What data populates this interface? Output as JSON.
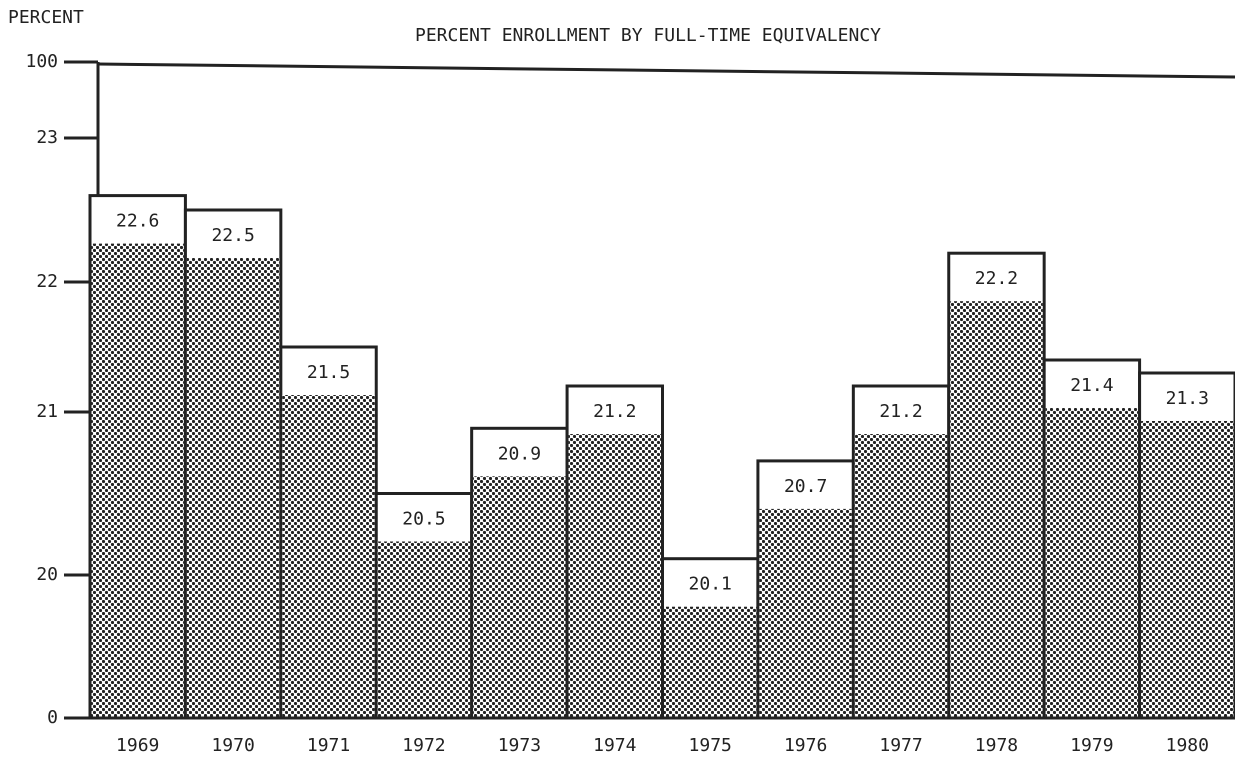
{
  "chart_data": {
    "type": "bar",
    "title": "PERCENT ENROLLMENT BY FULL-TIME EQUIVALENCY",
    "y_label": "PERCENT",
    "categories": [
      "1969",
      "1970",
      "1971",
      "1972",
      "1973",
      "1974",
      "1975",
      "1976",
      "1977",
      "1978",
      "1979",
      "1980"
    ],
    "values": [
      22.6,
      22.5,
      21.5,
      20.5,
      20.9,
      21.2,
      20.1,
      20.7,
      21.2,
      22.2,
      21.4,
      21.3
    ],
    "color": "#222222",
    "ylim": [
      0,
      100
    ],
    "yticks": [
      0,
      20,
      21,
      22,
      23,
      100
    ],
    "grid": false
  }
}
